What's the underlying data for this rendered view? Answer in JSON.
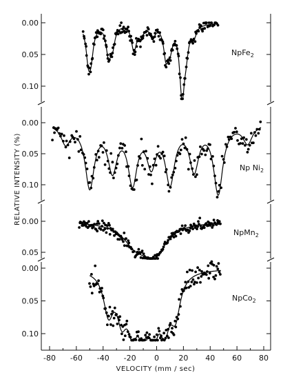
{
  "chart_data": {
    "type": "scatter",
    "title": "",
    "xlabel": "VELOCITY (mm / sec)",
    "ylabel": "RELATIVE INTENSITY (%)",
    "xlim": [
      -80,
      80
    ],
    "xticks": [
      "-80",
      "-60",
      "-40",
      "-20",
      "0",
      "20",
      "40",
      "60",
      "80"
    ],
    "panels": [
      {
        "name": "NpFe₂",
        "label_main": "NpFe",
        "label_sub": "2",
        "ylim": [
          0.0,
          0.12
        ],
        "yticks": [
          "0.00",
          "0.05",
          "0.10"
        ],
        "fit_line": true,
        "background_x_range": [
          -55,
          46
        ],
        "peaks": [
          {
            "x": -51,
            "depth": 0.05
          },
          {
            "x": -49,
            "depth": 0.04
          },
          {
            "x": -36,
            "depth": 0.045
          },
          {
            "x": -33,
            "depth": 0.03
          },
          {
            "x": -17,
            "depth": 0.04
          },
          {
            "x": -12,
            "depth": 0.02
          },
          {
            "x": -3,
            "depth": 0.02
          },
          {
            "x": 7,
            "depth": 0.048
          },
          {
            "x": 10,
            "depth": 0.03
          },
          {
            "x": 19,
            "depth": 0.11
          },
          {
            "x": 22,
            "depth": 0.03
          },
          {
            "x": 28,
            "depth": 0.015
          }
        ]
      },
      {
        "name": "NpNi₂",
        "label_main": "Np Ni",
        "label_sub": "2",
        "ylim": [
          -0.02,
          0.12
        ],
        "yticks": [
          "0.00",
          "0.05",
          "0.10"
        ],
        "fit_line": true,
        "background_x_range": [
          -78,
          78
        ],
        "peaks": [
          {
            "x": -68,
            "depth": 0.03
          },
          {
            "x": -50,
            "depth": 0.1
          },
          {
            "x": -33,
            "depth": 0.07
          },
          {
            "x": -18,
            "depth": 0.09
          },
          {
            "x": -4,
            "depth": 0.06
          },
          {
            "x": 10,
            "depth": 0.09
          },
          {
            "x": 28,
            "depth": 0.07
          },
          {
            "x": 46,
            "depth": 0.11
          },
          {
            "x": 68,
            "depth": 0.03
          }
        ]
      },
      {
        "name": "NpMn₂",
        "label_main": "NpMn",
        "label_sub": "2",
        "ylim": [
          -0.01,
          0.06
        ],
        "yticks": [
          "0.00",
          "0.05"
        ],
        "fit_line": true,
        "background_x_range": [
          -58,
          48
        ],
        "peaks": [
          {
            "x": -16,
            "depth": 0.03
          },
          {
            "x": -2,
            "depth": 0.05
          }
        ]
      },
      {
        "name": "NpCo₂",
        "label_main": "NpCo",
        "label_sub": "2",
        "ylim": [
          -0.01,
          0.11
        ],
        "yticks": [
          "0.00",
          "0.05",
          "0.10"
        ],
        "fit_line": true,
        "background_x_range": [
          -50,
          48
        ],
        "peaks": [
          {
            "x": -36,
            "depth": 0.06
          },
          {
            "x": -26,
            "depth": 0.06
          },
          {
            "x": -18,
            "depth": 0.07
          },
          {
            "x": -10,
            "depth": 0.075
          },
          {
            "x": -2,
            "depth": 0.07
          },
          {
            "x": 6,
            "depth": 0.07
          },
          {
            "x": 14,
            "depth": 0.06
          }
        ]
      }
    ]
  }
}
